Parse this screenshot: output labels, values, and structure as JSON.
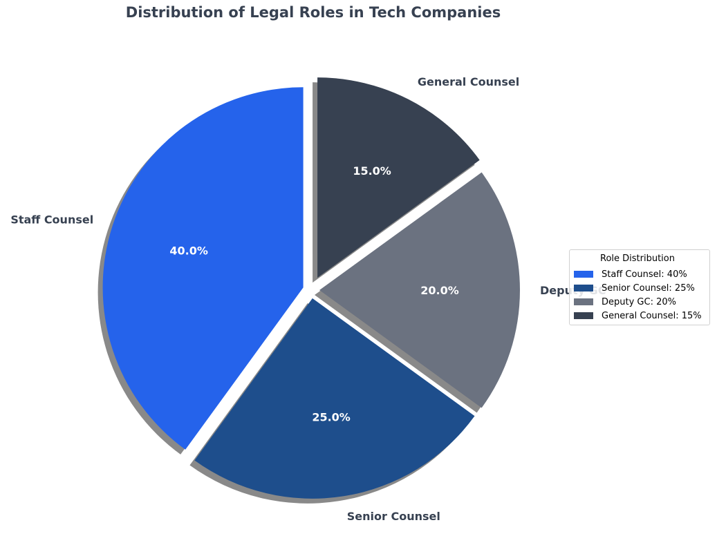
{
  "chart_data": {
    "type": "pie",
    "title": "Distribution of Legal Roles in Tech Companies",
    "categories": [
      "Staff Counsel",
      "Senior Counsel",
      "Deputy GC",
      "General Counsel"
    ],
    "values": [
      40,
      25,
      20,
      15
    ],
    "percent_labels": [
      "40.0%",
      "25.0%",
      "20.0%",
      "15.0%"
    ],
    "colors": [
      "#2563eb",
      "#1e4e8c",
      "#6b7280",
      "#374151"
    ],
    "start_angle": 90,
    "direction": "counterclockwise",
    "shadow": true,
    "exploded": true,
    "legend": {
      "title": "Role Distribution",
      "placement": "right",
      "entries": [
        "Staff Counsel: 40%",
        "Senior Counsel: 25%",
        "Deputy GC: 20%",
        "General Counsel: 15%"
      ]
    }
  }
}
